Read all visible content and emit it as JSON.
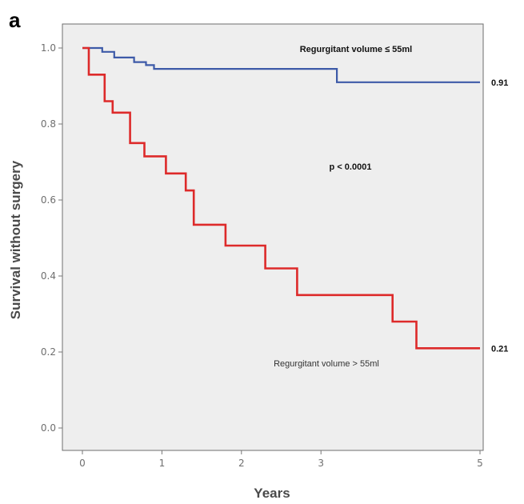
{
  "panel_label": "a",
  "chart_data": {
    "type": "line",
    "step": true,
    "xlabel": "Years",
    "ylabel": "Survival without surgery",
    "xlim": [
      0,
      5
    ],
    "ylim": [
      0,
      1.05
    ],
    "xticks": [
      "0",
      "1",
      "2",
      "3",
      "5"
    ],
    "xtick_values": [
      0,
      1,
      2,
      3,
      5
    ],
    "yticks": [
      "0.0",
      "0.2",
      "0.4",
      "0.6",
      "0.8",
      "1.0"
    ],
    "ytick_values": [
      0.0,
      0.2,
      0.4,
      0.6,
      0.8,
      1.0
    ],
    "grid": false,
    "series": [
      {
        "name": "Regurgitant volume ≤ 55ml",
        "color": "#3d5aa8",
        "end_value": 0.91,
        "end_label": "0.91",
        "x": [
          0,
          0.15,
          0.25,
          0.4,
          0.55,
          0.65,
          0.8,
          0.9,
          3.2,
          5.0
        ],
        "y": [
          1.0,
          1.0,
          0.99,
          0.975,
          0.975,
          0.963,
          0.955,
          0.945,
          0.91,
          0.91
        ]
      },
      {
        "name": "Regurgitant volume > 55ml",
        "color": "#dd2a2a",
        "end_value": 0.21,
        "end_label": "0.21",
        "x": [
          0,
          0.08,
          0.28,
          0.38,
          0.6,
          0.78,
          1.05,
          1.3,
          1.4,
          1.8,
          2.3,
          2.7,
          3.9,
          4.2,
          5.0
        ],
        "y": [
          1.0,
          0.93,
          0.86,
          0.83,
          0.75,
          0.715,
          0.67,
          0.625,
          0.535,
          0.48,
          0.42,
          0.35,
          0.28,
          0.21,
          0.21
        ]
      }
    ],
    "annotations": {
      "upper_group_label": "Regurgitant volume ≤ 55ml",
      "p_value": "p < 0.0001",
      "lower_group_label": "Regurgitant volume > 55ml"
    },
    "colors": {
      "plot_background": "#eeeeee",
      "frame": "#6e6e6e"
    }
  }
}
